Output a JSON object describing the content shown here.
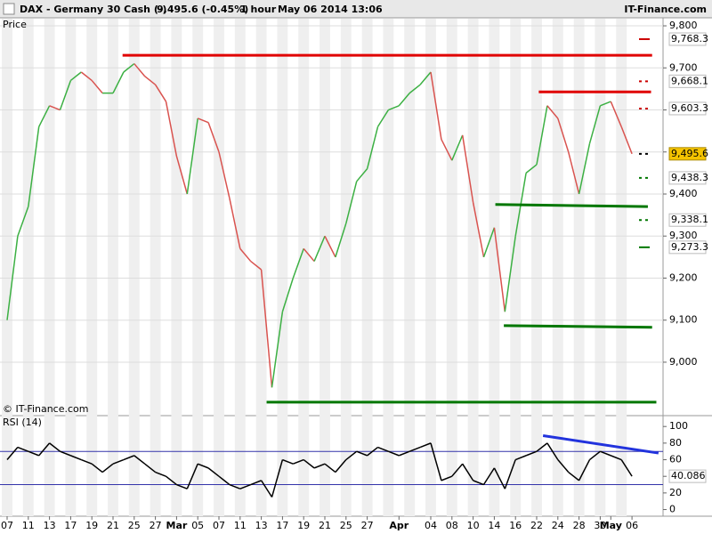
{
  "header": {
    "symbol": "DAX - Germany 30 Cash (-)",
    "quote": "9,495.6 (-0.45%)",
    "interval": "1 hour",
    "timestamp": "May 06 2014 13:06",
    "brand": "IT-Finance.com"
  },
  "chart_data": [
    {
      "type": "line",
      "panel_label": "Price",
      "watermark": "© IT-Finance.com",
      "categories": [
        "07",
        null,
        "11",
        null,
        "13",
        null,
        "17",
        null,
        "19",
        null,
        "21",
        null,
        "25",
        null,
        "27",
        null,
        "Mar",
        null,
        "05",
        null,
        "07",
        null,
        "11",
        null,
        "13",
        null,
        "17",
        null,
        "19",
        null,
        "21",
        null,
        "25",
        null,
        "27",
        null,
        null,
        "Apr",
        null,
        null,
        "04",
        null,
        "08",
        null,
        "10",
        null,
        "14",
        null,
        "16",
        null,
        "22",
        null,
        "24",
        null,
        "28",
        null,
        "30",
        "May",
        null,
        "06"
      ],
      "values": [
        9100,
        9300,
        9370,
        9560,
        9610,
        9600,
        9670,
        9690,
        9670,
        9640,
        9640,
        9690,
        9710,
        9680,
        9660,
        9620,
        9490,
        9400,
        9580,
        9570,
        9500,
        9390,
        9270,
        9240,
        9220,
        8940,
        9120,
        9200,
        9270,
        9240,
        9300,
        9250,
        9330,
        9430,
        9460,
        9560,
        9600,
        9610,
        9640,
        9660,
        9690,
        9530,
        9480,
        9540,
        9380,
        9250,
        9320,
        9120,
        9300,
        9450,
        9470,
        9610,
        9580,
        9500,
        9400,
        9520,
        9610,
        9620,
        9560,
        9495.6
      ],
      "up_color": "#3cb043",
      "down_color": "#d9534f",
      "ylim": [
        8875,
        9817
      ],
      "yticks": [
        {
          "value": 9000,
          "label": "9,000"
        },
        {
          "value": 9100,
          "label": "9,100"
        },
        {
          "value": 9200,
          "label": "9,200"
        },
        {
          "value": 9300,
          "label": "9,300"
        },
        {
          "value": 9400,
          "label": "9,400"
        },
        {
          "value": 9500,
          "label": "9,500"
        },
        {
          "value": 9600,
          "label": "9,600"
        },
        {
          "value": 9700,
          "label": "9,700"
        },
        {
          "value": 9800,
          "label": "9,800"
        }
      ],
      "grid": true,
      "levels": [
        {
          "value": 9768.3,
          "label": "9,768.3",
          "color": "#cc0000",
          "style": "solid"
        },
        {
          "value": 9668.1,
          "label": "9,668.1",
          "color": "#cc0000",
          "style": "dashed"
        },
        {
          "value": 9603.3,
          "label": "9,603.3",
          "color": "#cc0000",
          "style": "dashed"
        },
        {
          "value": 9495.6,
          "label": "9,495.6",
          "color": "#000000",
          "style": "dashed",
          "background": "#f5c400"
        },
        {
          "value": 9438.3,
          "label": "9,438.3",
          "color": "#007700",
          "style": "dashed"
        },
        {
          "value": 9338.1,
          "label": "9,338.1",
          "color": "#007700",
          "style": "dashed"
        },
        {
          "value": 9273.3,
          "label": "9,273.3",
          "color": "#007700",
          "style": "solid"
        }
      ],
      "trendlines": [
        {
          "x": [
            10.9,
            60.9
          ],
          "y": [
            9730,
            9730
          ],
          "color": "#e00000"
        },
        {
          "x": [
            50.2,
            60.8
          ],
          "y": [
            9643,
            9643
          ],
          "color": "#e00000"
        },
        {
          "x": [
            46.1,
            60.5
          ],
          "y": [
            9375,
            9370
          ],
          "color": "#007700"
        },
        {
          "x": [
            46.9,
            60.9
          ],
          "y": [
            9087,
            9083
          ],
          "color": "#007700"
        },
        {
          "x": [
            24.5,
            61.3
          ],
          "y": [
            8905,
            8905
          ],
          "color": "#007700"
        }
      ]
    },
    {
      "type": "line",
      "panel_label": "RSI (14)",
      "values": [
        60,
        75,
        70,
        65,
        80,
        70,
        65,
        60,
        55,
        45,
        55,
        60,
        65,
        55,
        45,
        40,
        30,
        25,
        55,
        50,
        40,
        30,
        25,
        30,
        35,
        15,
        60,
        55,
        60,
        50,
        55,
        45,
        60,
        70,
        65,
        75,
        70,
        65,
        70,
        75,
        80,
        35,
        40,
        55,
        35,
        30,
        50,
        25,
        60,
        65,
        70,
        80,
        60,
        45,
        35,
        60,
        70,
        65,
        60,
        40.086
      ],
      "color": "#000000",
      "ylim": [
        -8,
        112
      ],
      "yticks": [
        0,
        20,
        40,
        60,
        80,
        100
      ],
      "bands": [
        30,
        70
      ],
      "band_color": "#3333aa",
      "trendlines": [
        {
          "x": [
            50.6,
            61.5
          ],
          "y": [
            89,
            68
          ],
          "color": "#2233dd"
        }
      ]
    }
  ]
}
